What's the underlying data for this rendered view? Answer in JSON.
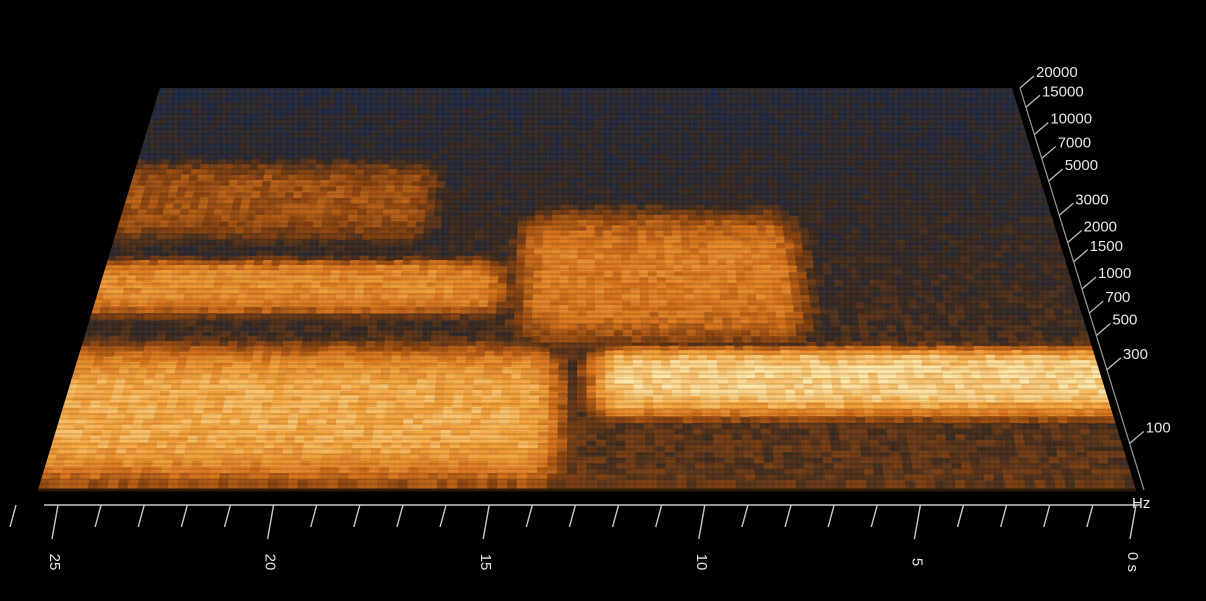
{
  "chart_data": {
    "type": "heatmap",
    "title": "",
    "xlabel": "",
    "ylabel": "",
    "time_axis": {
      "unit": "s",
      "range": [
        25,
        0
      ],
      "major_ticks": [
        25,
        20,
        15,
        10,
        5,
        0
      ],
      "tick_labels": [
        "25",
        "20",
        "15",
        "10",
        "5",
        "0 s"
      ],
      "minor_ticks": [
        26,
        25,
        24,
        23,
        22,
        21,
        20,
        19,
        18,
        17,
        16,
        15,
        14,
        13,
        12,
        11,
        10,
        9,
        8,
        7,
        6,
        5,
        4,
        3,
        2,
        1,
        0
      ]
    },
    "frequency_axis": {
      "unit": "Hz",
      "scale": "log",
      "range": [
        50,
        20000
      ],
      "ticks": [
        100,
        300,
        500,
        700,
        1000,
        1500,
        2000,
        3000,
        5000,
        7000,
        10000,
        15000,
        20000
      ],
      "tick_labels": [
        "100",
        "300",
        "500",
        "700",
        "1000",
        "1500",
        "2000",
        "3000",
        "5000",
        "7000",
        "10000",
        "15000",
        "20000"
      ],
      "unit_label": "Hz"
    },
    "colormap": [
      "#000000",
      "#1b2a4a",
      "#3a2a20",
      "#8a4410",
      "#d8741c",
      "#f4a640",
      "#ffe6a8"
    ],
    "energy_bands": [
      {
        "t_range": [
          26,
          14.5
        ],
        "f_range": [
          50,
          400
        ],
        "intensity": 0.85
      },
      {
        "t_range": [
          26,
          16
        ],
        "f_range": [
          700,
          1300
        ],
        "intensity": 0.75
      },
      {
        "t_range": [
          12,
          0
        ],
        "f_range": [
          150,
          350
        ],
        "intensity": 0.95
      },
      {
        "t_range": [
          14,
          8
        ],
        "f_range": [
          400,
          3000
        ],
        "intensity": 0.7
      },
      {
        "t_range": [
          26,
          18
        ],
        "f_range": [
          2000,
          6000
        ],
        "intensity": 0.55
      },
      {
        "t_range": [
          10,
          0
        ],
        "f_range": [
          3000,
          20000
        ],
        "intensity": 0.25
      }
    ]
  }
}
